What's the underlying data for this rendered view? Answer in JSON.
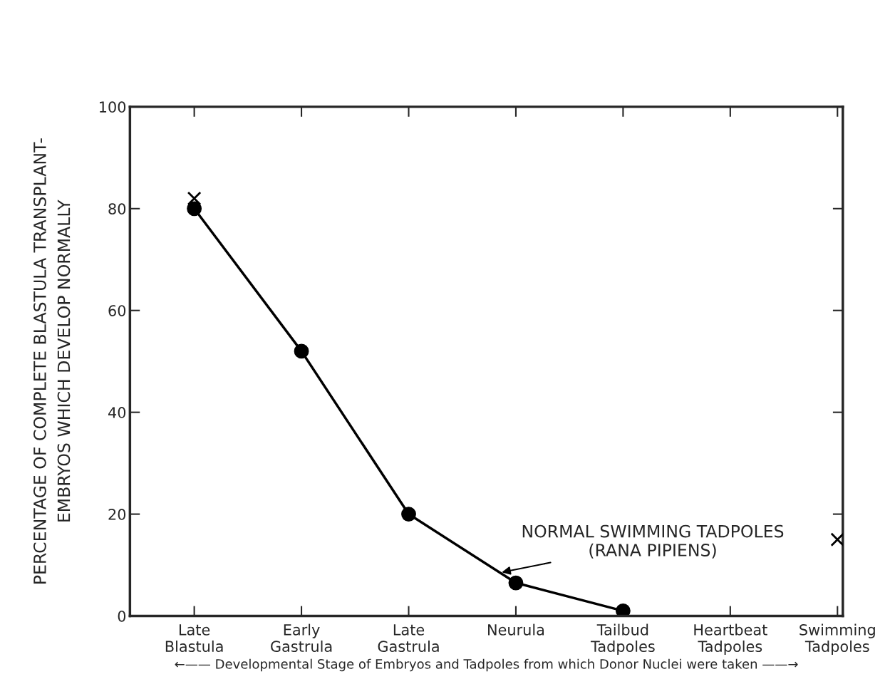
{
  "chart_data": {
    "type": "line",
    "ylabel": "PERCENTAGE OF COMPLETE BLASTULA TRANSPLANT-\nEMBRYOS WHICH DEVELOP NORMALLY",
    "xlabel": "←—— Developmental Stage of Embryos and Tadpoles from which Donor Nuclei were taken ——→",
    "categories": [
      "Late\nBlastula",
      "Early\nGastrula",
      "Late\nGastrula",
      "Neurula",
      "Tailbud\nTadpoles",
      "Heartbeat\nTadpoles",
      "Swimming\nTadpoles"
    ],
    "series": [
      {
        "color": "#000000",
        "marker": "circle",
        "values": [
          80,
          52,
          20,
          6.5,
          1,
          null,
          null
        ]
      },
      {
        "type": "scatter",
        "color": "#000000",
        "marker": "cross",
        "values": [
          82,
          null,
          null,
          null,
          null,
          null,
          15
        ]
      }
    ],
    "ylim": [
      0,
      100
    ],
    "yticks": [
      0,
      20,
      40,
      60,
      80,
      100
    ],
    "annotations": [
      {
        "text": "NORMAL SWIMMING TADPOLES\n(RANA PIPIENS)",
        "x": "Neurula",
        "y": 6.5
      }
    ]
  }
}
